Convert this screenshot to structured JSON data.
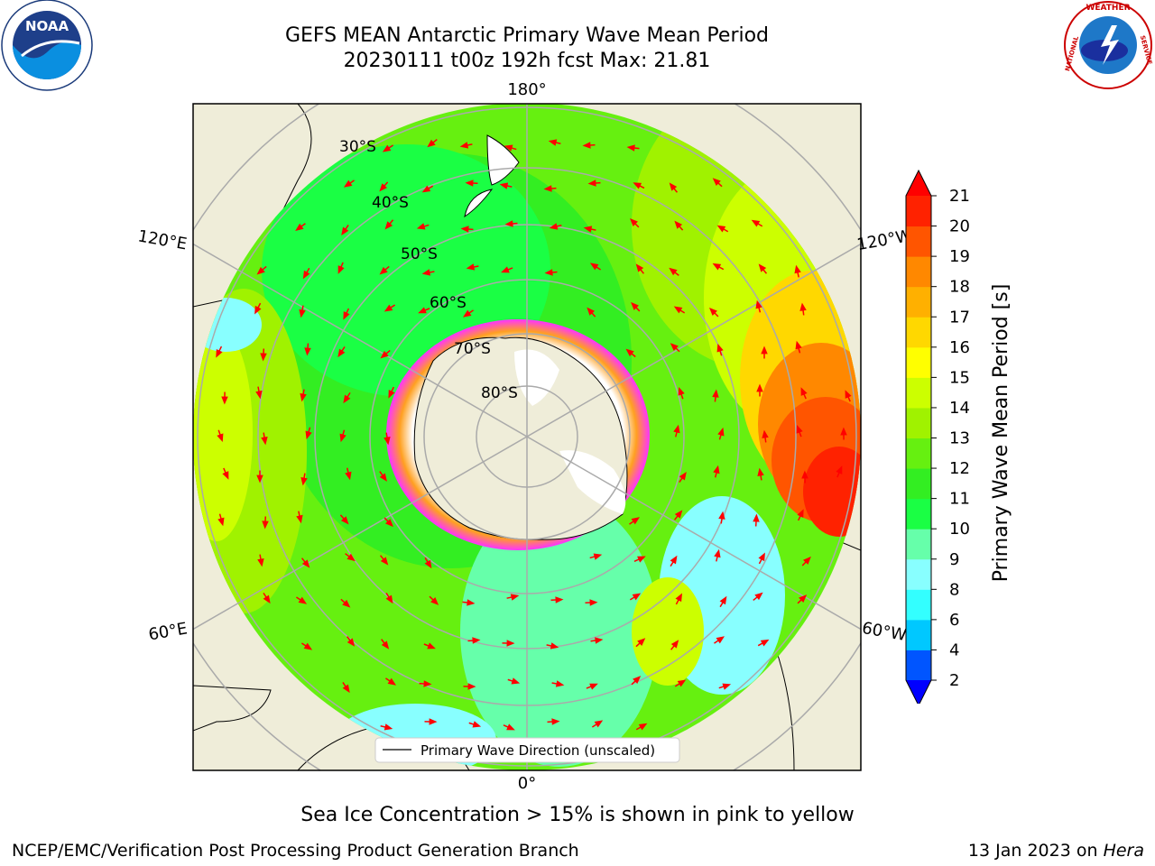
{
  "header": {
    "title": "GEFS MEAN Antarctic Primary Wave Mean Period",
    "subtitle": "20230111 t00z 192h fcst   Max: 21.81"
  },
  "logos": {
    "left": {
      "name": "noaa-logo",
      "text": "NOAA",
      "ring_text": "NATIONAL OCEANIC AND ATMOSPHERIC ADMINISTRATION · U.S. DEPARTMENT OF COMMERCE"
    },
    "right": {
      "name": "nws-logo",
      "ring_text": "NATIONAL WEATHER SERVICE"
    }
  },
  "map": {
    "projection": "south-polar-stereographic",
    "lon_labels": {
      "top": "180°",
      "bottom": "0°",
      "upper_left": "120°E",
      "upper_right": "120°W",
      "lower_left": "60°E",
      "lower_right": "60°W"
    },
    "lat_labels": [
      "30°S",
      "40°S",
      "50°S",
      "60°S",
      "70°S",
      "80°S"
    ],
    "legend": "Primary Wave Direction (unscaled)",
    "arrow_color": "#ff0000",
    "land_color": "#efedd9"
  },
  "colorbar": {
    "label": "Primary Wave Mean Period [s]",
    "ticks": [
      "2",
      "4",
      "6",
      "8",
      "9",
      "10",
      "11",
      "12",
      "13",
      "14",
      "15",
      "16",
      "17",
      "18",
      "19",
      "20",
      "21"
    ],
    "colors": [
      "#0055ff",
      "#00c8ff",
      "#33ffff",
      "#88ffff",
      "#66ffaa",
      "#1aff44",
      "#33ee22",
      "#66f010",
      "#a0f200",
      "#ccff00",
      "#ffff00",
      "#ffd800",
      "#ffb000",
      "#ff8800",
      "#ff5500",
      "#ff2200"
    ],
    "min_color": "#0000ff",
    "max_color": "#ff0000"
  },
  "caption": "Sea Ice Concentration > 15% is shown in pink to yellow",
  "footer": {
    "left": "NCEP/EMC/Verification Post Processing Product Generation Branch",
    "right_date": "13 Jan 2023 on ",
    "right_host": "Hera"
  }
}
